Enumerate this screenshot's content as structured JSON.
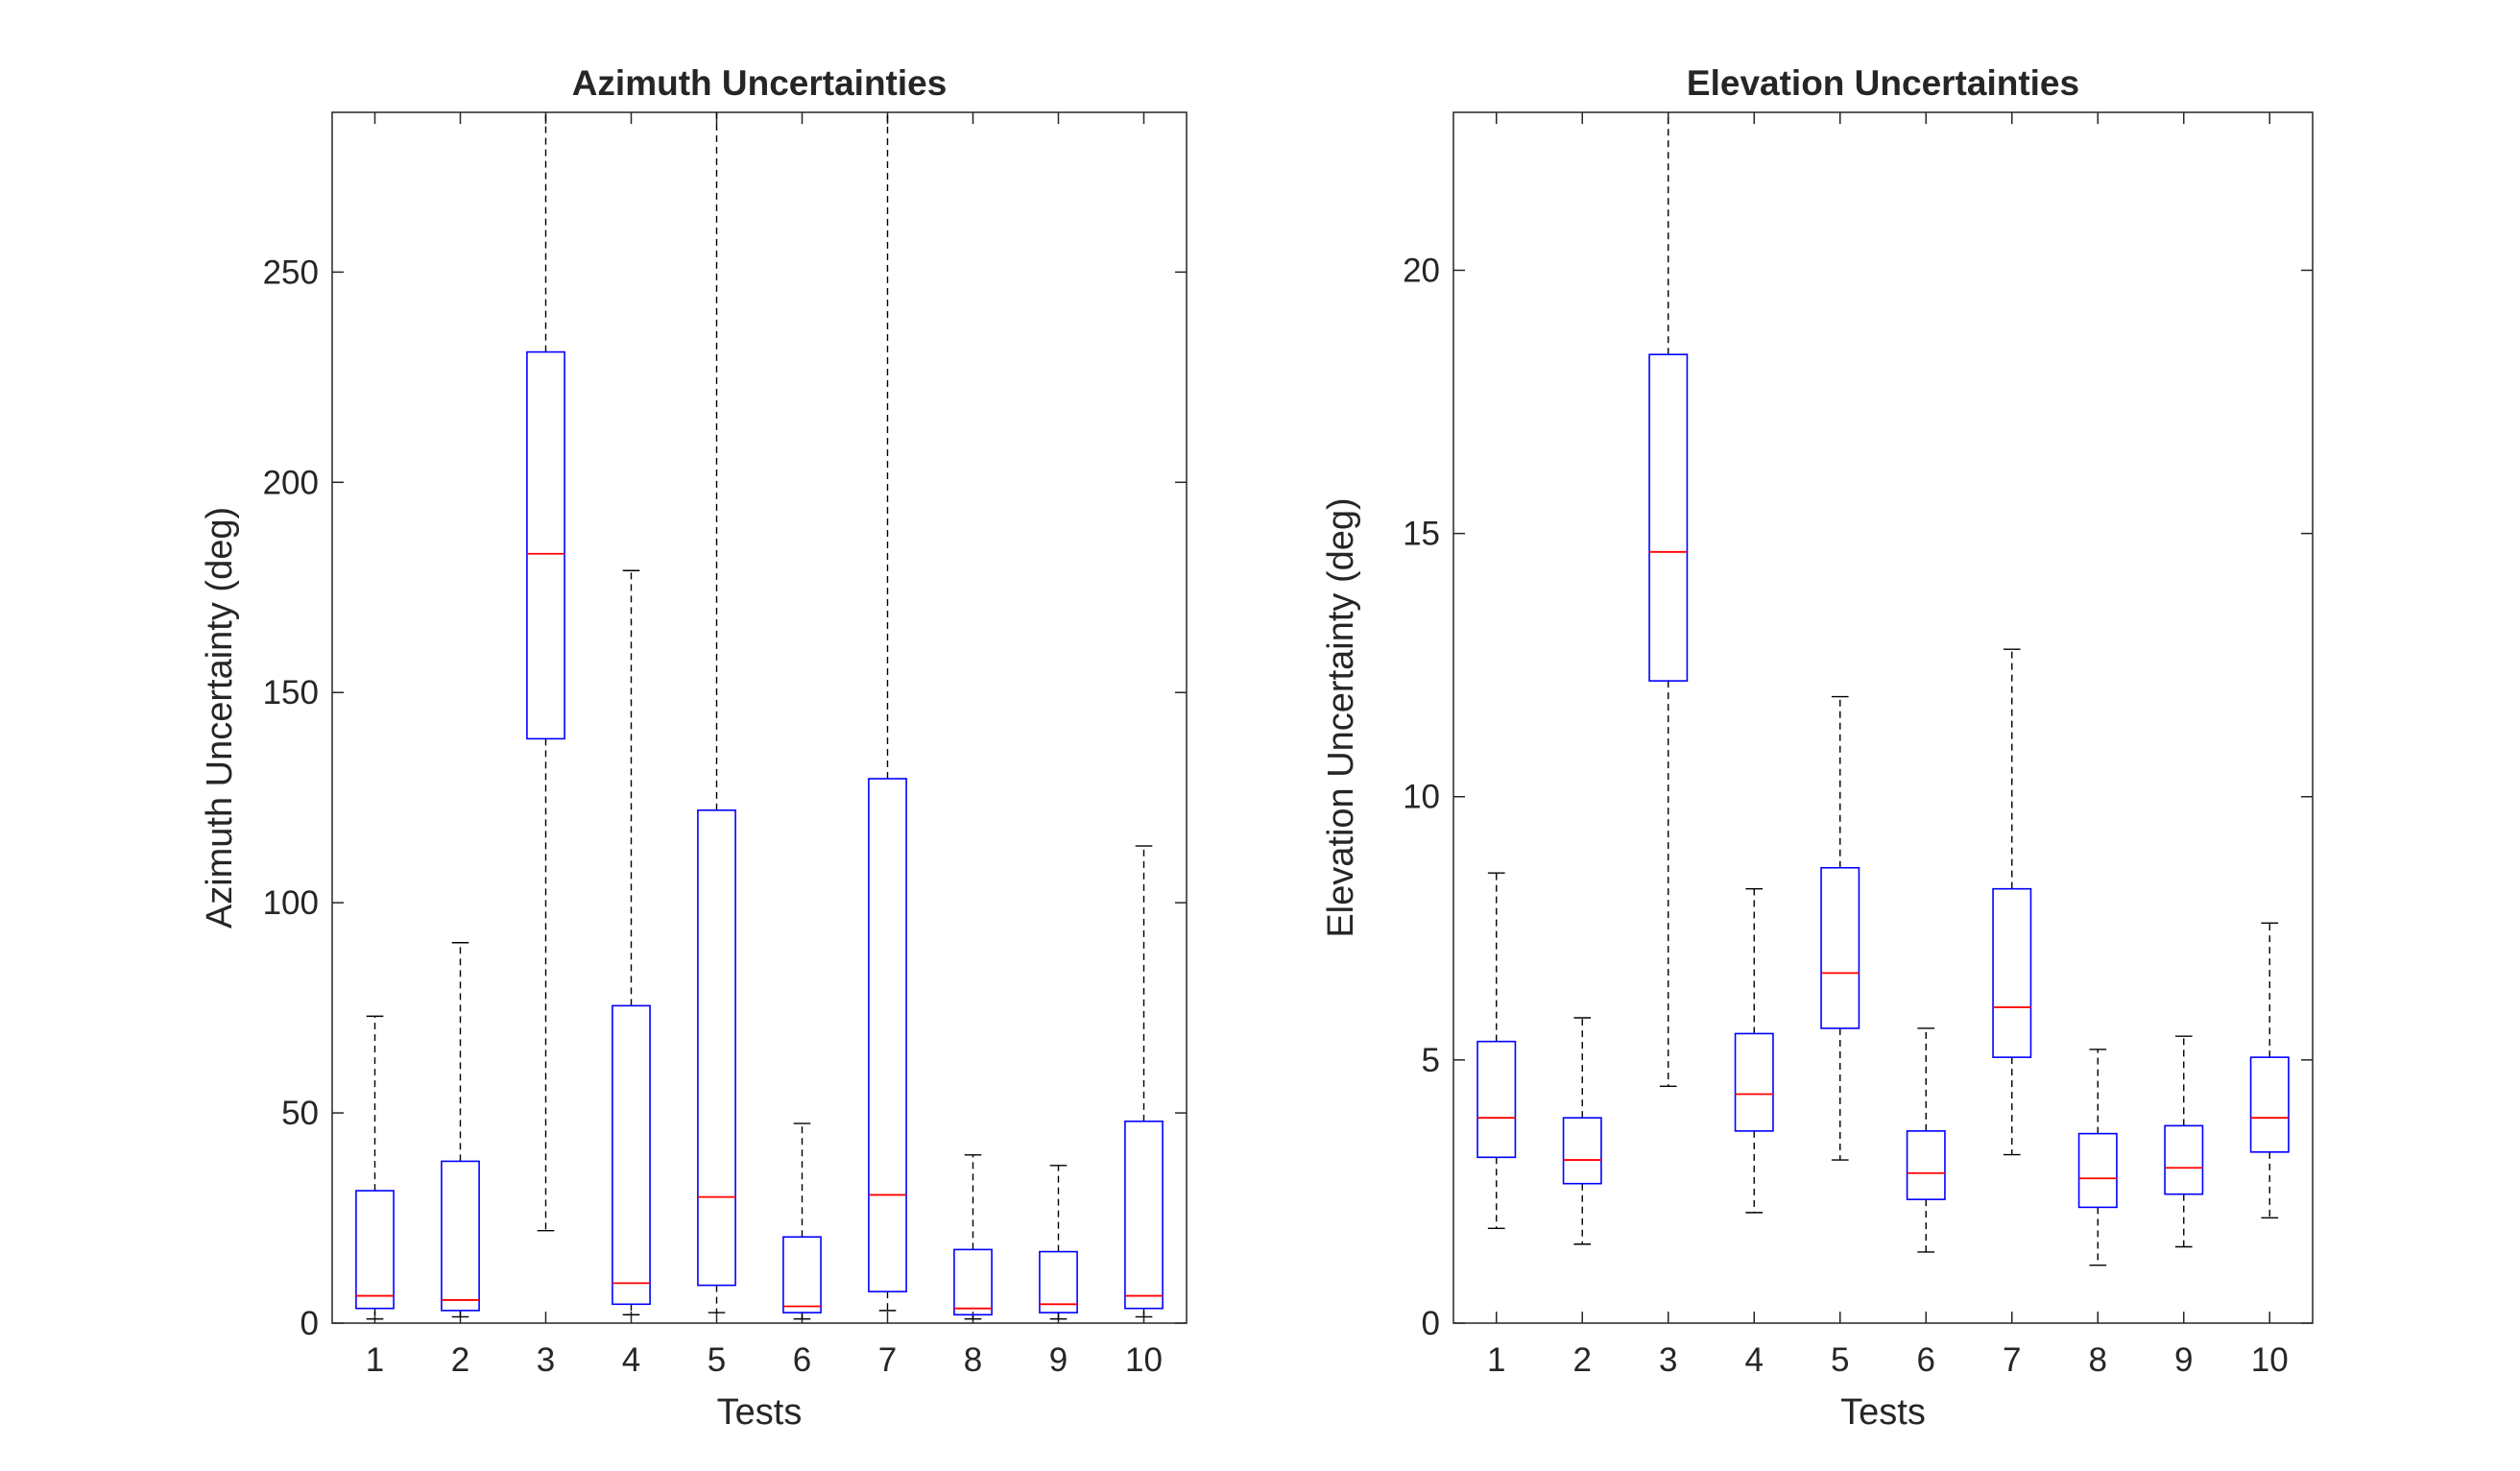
{
  "chart_data": [
    {
      "type": "box",
      "title": "Azimuth Uncertainties",
      "xlabel": "Tests",
      "ylabel": "Azimuth Uncertainty (deg)",
      "ylim": [
        0,
        288
      ],
      "yticks": [
        0,
        50,
        100,
        150,
        200,
        250
      ],
      "categories": [
        "1",
        "2",
        "3",
        "4",
        "5",
        "6",
        "7",
        "8",
        "9",
        "10"
      ],
      "boxes": [
        {
          "category": "1",
          "whisker_low": 1,
          "q1": 3.5,
          "median": 6.5,
          "q3": 31.5,
          "whisker_high": 73
        },
        {
          "category": "2",
          "whisker_low": 1.5,
          "q1": 3,
          "median": 5.5,
          "q3": 38.5,
          "whisker_high": 90.5
        },
        {
          "category": "3",
          "whisker_low": 22,
          "q1": 139,
          "median": 183,
          "q3": 231,
          "whisker_high": 288
        },
        {
          "category": "4",
          "whisker_low": 2,
          "q1": 4.5,
          "median": 9.5,
          "q3": 75.5,
          "whisker_high": 179
        },
        {
          "category": "5",
          "whisker_low": 2.5,
          "q1": 9,
          "median": 30,
          "q3": 122,
          "whisker_high": 288
        },
        {
          "category": "6",
          "whisker_low": 1,
          "q1": 2.5,
          "median": 4,
          "q3": 20.5,
          "whisker_high": 47.5
        },
        {
          "category": "7",
          "whisker_low": 3,
          "q1": 7.5,
          "median": 30.5,
          "q3": 129.5,
          "whisker_high": 288
        },
        {
          "category": "8",
          "whisker_low": 1,
          "q1": 2,
          "median": 3.5,
          "q3": 17.5,
          "whisker_high": 40
        },
        {
          "category": "9",
          "whisker_low": 1,
          "q1": 2.5,
          "median": 4.5,
          "q3": 17,
          "whisker_high": 37.5
        },
        {
          "category": "10",
          "whisker_low": 1.5,
          "q1": 3.5,
          "median": 6.5,
          "q3": 48,
          "whisker_high": 113.5
        }
      ]
    },
    {
      "type": "box",
      "title": "Elevation Uncertainties",
      "xlabel": "Tests",
      "ylabel": "Elevation Uncertainty (deg)",
      "ylim": [
        0,
        23
      ],
      "yticks": [
        0,
        5,
        10,
        15,
        20
      ],
      "categories": [
        "1",
        "2",
        "3",
        "4",
        "5",
        "6",
        "7",
        "8",
        "9",
        "10"
      ],
      "boxes": [
        {
          "category": "1",
          "whisker_low": 1.8,
          "q1": 3.15,
          "median": 3.9,
          "q3": 5.35,
          "whisker_high": 8.55
        },
        {
          "category": "2",
          "whisker_low": 1.5,
          "q1": 2.65,
          "median": 3.1,
          "q3": 3.9,
          "whisker_high": 5.8
        },
        {
          "category": "3",
          "whisker_low": 4.5,
          "q1": 12.2,
          "median": 14.65,
          "q3": 18.4,
          "whisker_high": 23
        },
        {
          "category": "4",
          "whisker_low": 2.1,
          "q1": 3.65,
          "median": 4.35,
          "q3": 5.5,
          "whisker_high": 8.25
        },
        {
          "category": "5",
          "whisker_low": 3.1,
          "q1": 5.6,
          "median": 6.65,
          "q3": 8.65,
          "whisker_high": 11.9
        },
        {
          "category": "6",
          "whisker_low": 1.35,
          "q1": 2.35,
          "median": 2.85,
          "q3": 3.65,
          "whisker_high": 5.6
        },
        {
          "category": "7",
          "whisker_low": 3.2,
          "q1": 5.05,
          "median": 6,
          "q3": 8.25,
          "whisker_high": 12.8
        },
        {
          "category": "8",
          "whisker_low": 1.1,
          "q1": 2.2,
          "median": 2.75,
          "q3": 3.6,
          "whisker_high": 5.2
        },
        {
          "category": "9",
          "whisker_low": 1.45,
          "q1": 2.45,
          "median": 2.95,
          "q3": 3.75,
          "whisker_high": 5.45
        },
        {
          "category": "10",
          "whisker_low": 2,
          "q1": 3.25,
          "median": 3.9,
          "q3": 5.05,
          "whisker_high": 7.6
        }
      ]
    }
  ],
  "colors": {
    "box": "#0000ff",
    "median": "#ff0000",
    "whisker": "#000000",
    "axes": "#262626"
  }
}
